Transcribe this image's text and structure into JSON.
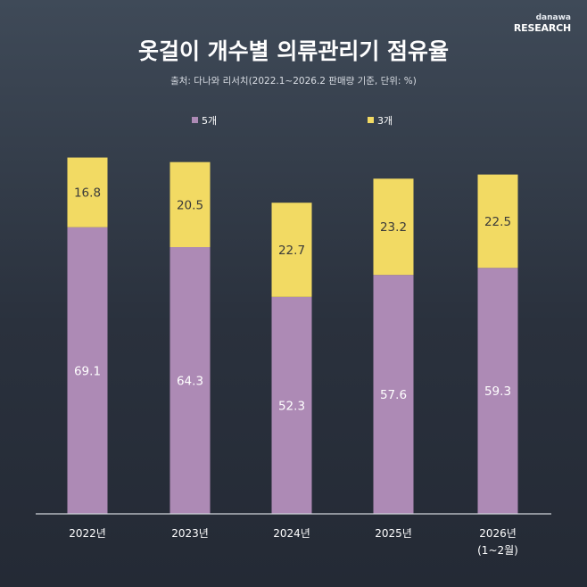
{
  "brand": {
    "small": "danawa",
    "big": "RESEARCH"
  },
  "title": "옷걸이 개수별 의류관리기 점유율",
  "subtitle": "출처: 다나와 리서치(2022.1~2026.2 판매량 기준, 단위: %)",
  "colors": {
    "five": "#ad8ab5",
    "three": "#f2da63",
    "axis": "#d0d4da"
  },
  "chart_data": {
    "type": "bar",
    "stacked": true,
    "title": "옷걸이 개수별 의류관리기 점유율",
    "categories": [
      "2022년",
      "2023년",
      "2024년",
      "2025년",
      "2026년"
    ],
    "category_notes": [
      "",
      "",
      "",
      "",
      "(1~2월)"
    ],
    "series": [
      {
        "name": "5개",
        "values": [
          69.1,
          64.3,
          52.3,
          57.6,
          59.3
        ]
      },
      {
        "name": "3개",
        "values": [
          16.8,
          20.5,
          22.7,
          23.2,
          22.5
        ]
      }
    ],
    "ylabel": "%",
    "legend_position": "top"
  }
}
